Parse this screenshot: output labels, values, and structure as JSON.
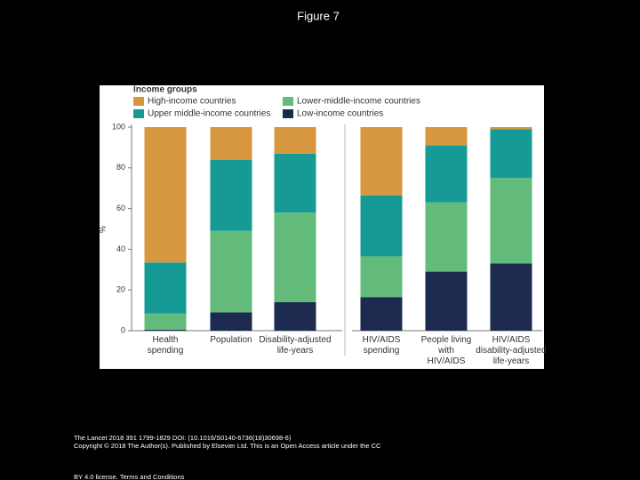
{
  "header": {
    "title": "Figure 7"
  },
  "chart_data": {
    "type": "stacked-bar",
    "legend_title": "Income groups",
    "ylabel": "%",
    "categories": [
      "Health spending",
      "Population",
      "Disability-adjusted life-years",
      "HIV/AIDS spending",
      "People living with HIV/AIDS",
      "HIV/AIDS disability-adjusted life-years"
    ],
    "series": [
      {
        "name": "Low-income countries",
        "color": "#1b2a4e",
        "values": [
          0.5,
          9,
          14,
          16.5,
          29,
          33
        ]
      },
      {
        "name": "Lower-middle-income countries",
        "color": "#62bb7a",
        "values": [
          8,
          40,
          44,
          20,
          34,
          42
        ]
      },
      {
        "name": "Upper middle-income countries",
        "color": "#159a96",
        "values": [
          25,
          35,
          29,
          30,
          28,
          24
        ]
      },
      {
        "name": "High-income countries",
        "color": "#d6973f",
        "values": [
          66.5,
          16,
          13,
          33.5,
          9,
          1
        ]
      }
    ],
    "ylim": [
      0,
      100
    ],
    "yticks": [
      0,
      20,
      40,
      60,
      80,
      100
    ]
  },
  "footer": {
    "citation": "The Lancet 2018 391 1799-1829 DOI: (10.1016/S0140-6736(18)30698-6)",
    "copyright": "Copyright © 2018 The Author(s). Published by Elsevier Ltd. This is an Open Access article under the CC",
    "license": "BY 4.0 license.",
    "terms": "Terms and Conditions"
  }
}
